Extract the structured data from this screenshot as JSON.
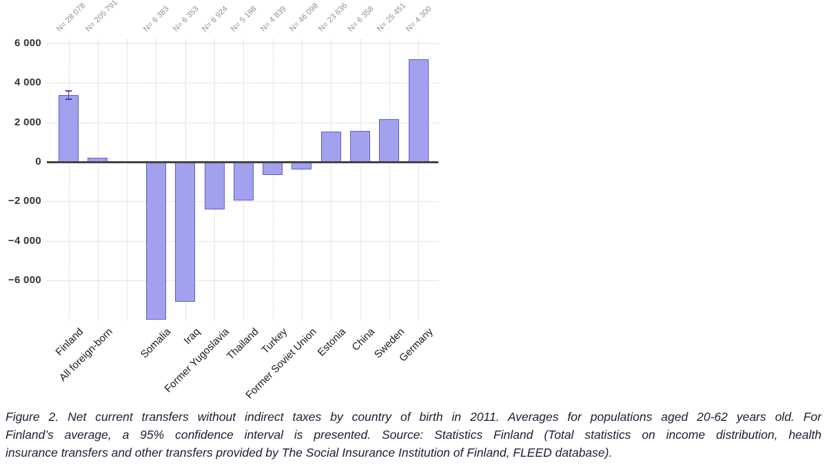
{
  "figure": {
    "caption": {
      "lines": [
        "Figure 2. Net current transfers without indirect taxes by country of birth in 2011. Averages for populations aged 20-62 years old. For",
        "Finland’s average, a 95% confidence interval is presented. Source: Statistics Finland (Total statistics on income distribution, health",
        "insurance transfers and other transfers provided by The Social Insurance Institution of Finland, FLEED database)."
      ]
    }
  },
  "chart_data": {
    "type": "bar",
    "title": "",
    "xlabel": "",
    "ylabel": "",
    "categories": [
      "Finland",
      "All foreign-born",
      "Somalia",
      "Iraq",
      "Former Yugoslavia",
      "Thailand",
      "Turkey",
      "Former Soviet Union",
      "Estonia",
      "China",
      "Sweden",
      "Germany"
    ],
    "values": [
      3370,
      200,
      -7950,
      -7050,
      -2370,
      -1900,
      -630,
      -350,
      1520,
      1560,
      2150,
      5180
    ],
    "n_labels": [
      "N= 28 078",
      "N= 205 791",
      "N= 6 383",
      "N= 6 353",
      "N= 6 924",
      "N= 5 198",
      "N= 4 839",
      "N= 46 098",
      "N= 23 636",
      "N= 6 358",
      "N= 25 451",
      "N= 4 300"
    ],
    "error_bar": {
      "category": "Finland",
      "low": 3180,
      "high": 3580,
      "note": "95% confidence interval"
    },
    "yticks": [
      6000,
      4000,
      2000,
      0,
      -2000,
      -4000,
      -6000
    ],
    "ytick_labels": [
      "6 000",
      "4 000",
      "2 000",
      "0",
      "−2 000",
      "−4 000",
      "−6 000"
    ],
    "ylim": [
      -8050,
      6300
    ],
    "grid": "dotted, horizontal at each ytick and vertical at each category slot",
    "gap_slot_after_index": 1,
    "legend": "none",
    "colors": {
      "bar_fill": "#a1a1ee",
      "bar_border": "#5d5dce",
      "zero_line": "#424242",
      "grid_line": "#cccccc",
      "n_label": "#919191",
      "category_label": "#1a1a1a",
      "ytick_label": "#333333",
      "error_bar": "#3d3dc0",
      "caption_text": "#1d1d35",
      "background": "#ffffff"
    }
  }
}
